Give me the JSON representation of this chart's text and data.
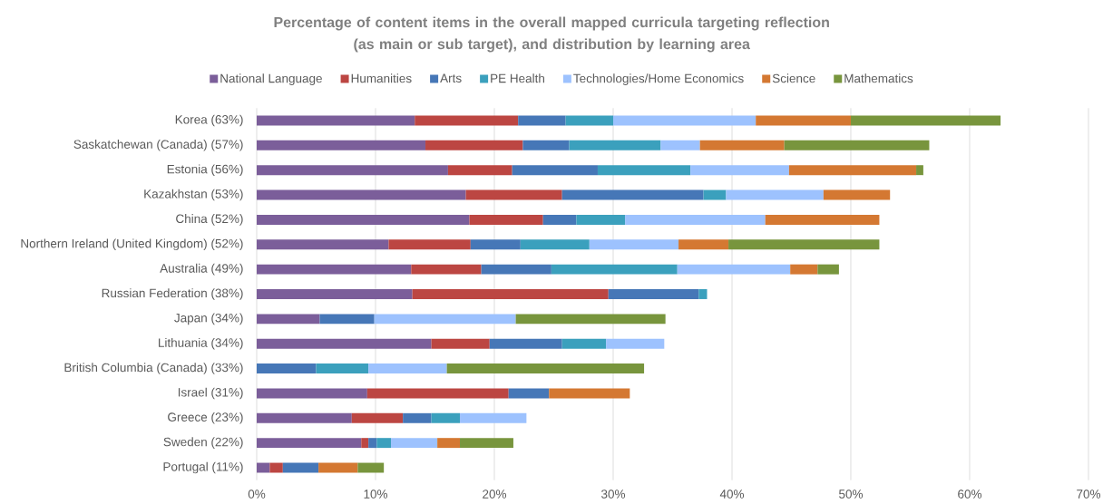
{
  "chart_data": {
    "type": "bar",
    "orientation": "horizontal",
    "stacked": true,
    "title": "Percentage of content items in the overall mapped curricula targeting reflection (as main or sub target), and distribution by learning area",
    "categories": [
      "Korea (63%)",
      "Saskatchewan (Canada) (57%)",
      "Estonia (56%)",
      "Kazakhstan (53%)",
      "China (52%)",
      "Northern Ireland (United Kingdom) (52%)",
      "Australia (49%)",
      "Russian Federation (38%)",
      "Japan (34%)",
      "Lithuania (34%)",
      "British Columbia (Canada) (33%)",
      "Israel (31%)",
      "Greece (23%)",
      "Sweden (22%)",
      "Portugal (11%)"
    ],
    "series": [
      {
        "name": "National Language",
        "color": "#7b5e9a",
        "values": [
          13.3,
          14.2,
          16.1,
          17.6,
          17.9,
          11.1,
          13.0,
          13.1,
          5.3,
          14.7,
          null,
          9.3,
          8.0,
          8.8,
          1.1
        ]
      },
      {
        "name": "Humanities",
        "color": "#bc4642",
        "values": [
          8.7,
          8.2,
          5.4,
          8.1,
          6.2,
          6.9,
          5.9,
          16.5,
          null,
          4.9,
          null,
          11.9,
          4.3,
          0.6,
          1.1
        ]
      },
      {
        "name": "Arts",
        "color": "#4677b7",
        "values": [
          4.0,
          3.9,
          7.2,
          11.9,
          2.8,
          4.2,
          5.9,
          7.6,
          4.6,
          6.1,
          5.0,
          3.4,
          2.4,
          0.7,
          3.0
        ]
      },
      {
        "name": "PE Health",
        "color": "#3ba0bd",
        "values": [
          4.0,
          7.7,
          7.8,
          1.9,
          4.1,
          5.8,
          10.6,
          0.7,
          null,
          3.7,
          4.4,
          null,
          2.4,
          1.2,
          null
        ]
      },
      {
        "name": "Technologies/Home Economics",
        "color": "#9dc2fe",
        "values": [
          12.0,
          3.3,
          8.3,
          8.2,
          11.8,
          7.5,
          9.5,
          null,
          11.9,
          4.9,
          6.6,
          null,
          5.6,
          3.9,
          null
        ]
      },
      {
        "name": "Science",
        "color": "#d47832",
        "values": [
          8.0,
          7.1,
          10.7,
          5.6,
          9.6,
          4.2,
          2.3,
          null,
          null,
          null,
          null,
          6.8,
          null,
          1.9,
          3.3
        ]
      },
      {
        "name": "Mathematics",
        "color": "#78953d",
        "values": [
          12.6,
          12.2,
          0.6,
          null,
          null,
          12.7,
          1.8,
          null,
          12.6,
          null,
          16.6,
          null,
          null,
          4.5,
          2.2
        ]
      }
    ],
    "xlim": [
      0,
      70
    ],
    "xticks": [
      {
        "value": 0,
        "label": "0%"
      },
      {
        "value": 10,
        "label": "10%"
      },
      {
        "value": 20,
        "label": "20%"
      },
      {
        "value": 30,
        "label": "30%"
      },
      {
        "value": 40,
        "label": "40%"
      },
      {
        "value": 50,
        "label": "50%"
      },
      {
        "value": 60,
        "label": "60%"
      },
      {
        "value": 70,
        "label": "70%"
      }
    ],
    "grid": "x",
    "legend": "top"
  }
}
